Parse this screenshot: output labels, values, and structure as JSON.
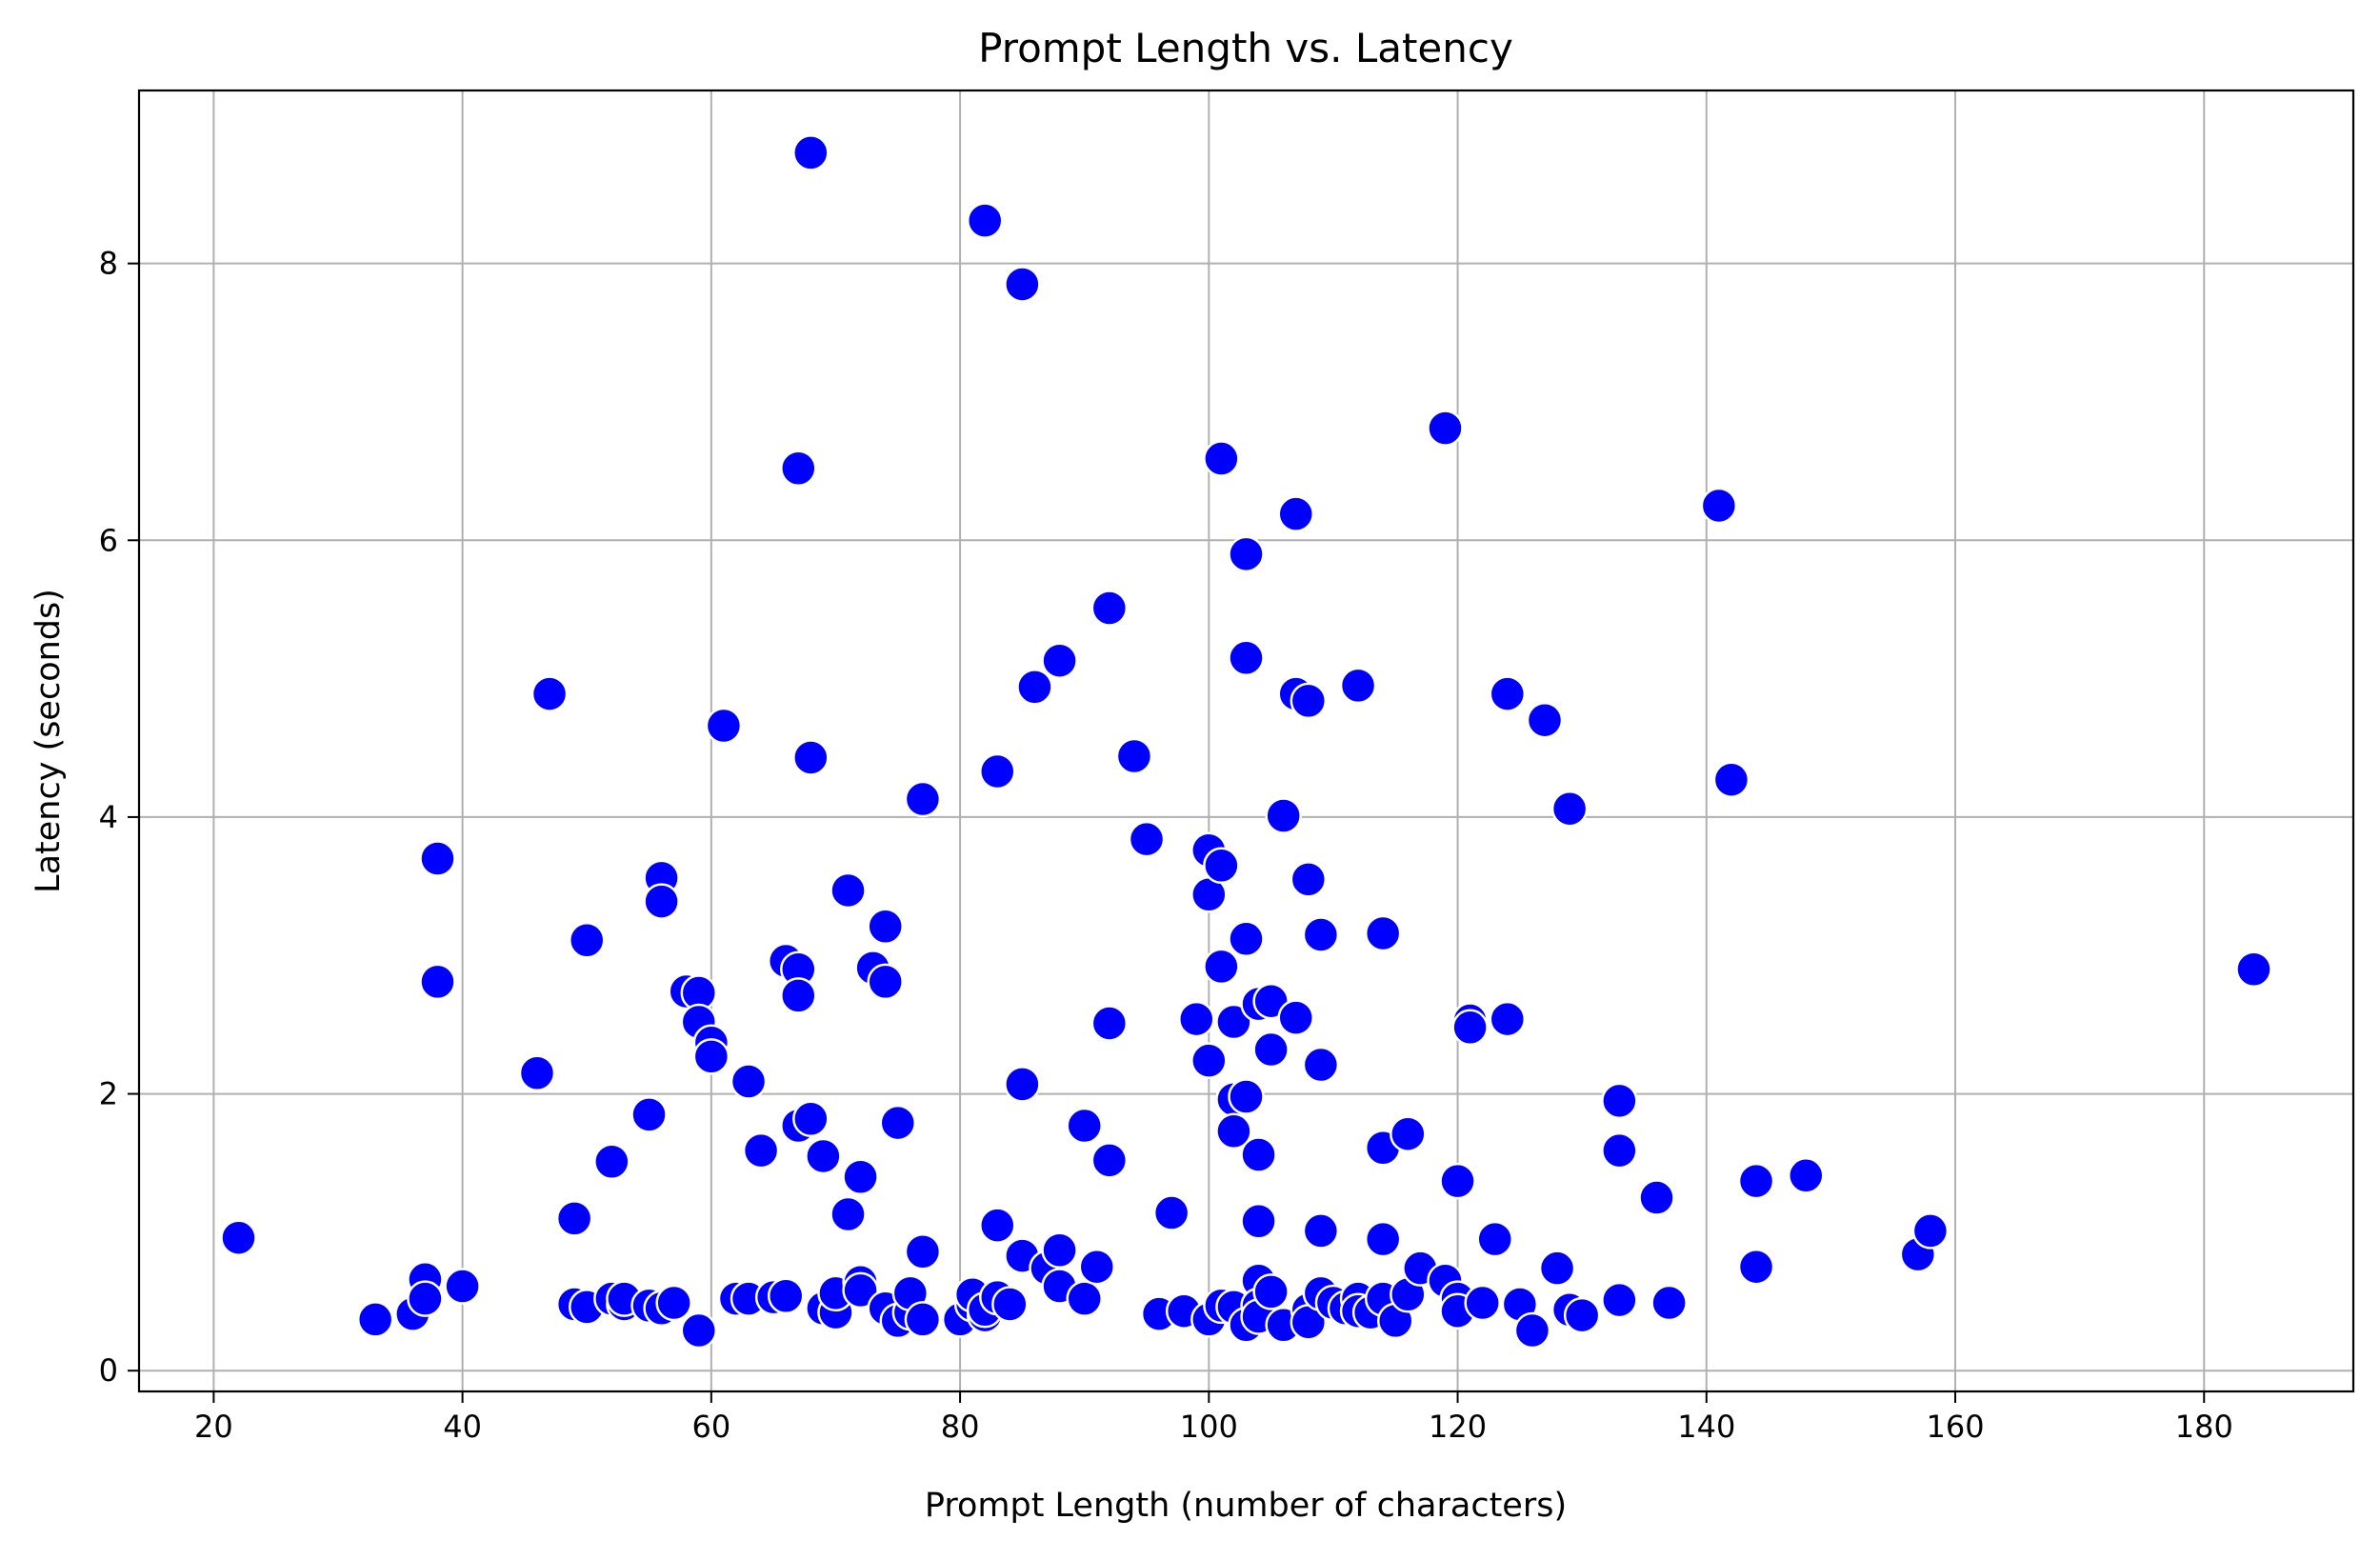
{
  "chart_data": {
    "type": "scatter",
    "title": "Prompt Length vs. Latency",
    "xlabel": "Prompt Length (number of characters)",
    "ylabel": "Latency (seconds)",
    "xlim": [
      14,
      192
    ],
    "ylim": [
      -0.15,
      9.25
    ],
    "xticks": [
      20,
      40,
      60,
      80,
      100,
      120,
      140,
      160,
      180
    ],
    "yticks": [
      0,
      2,
      4,
      6,
      8
    ],
    "grid": true,
    "marker_color": "#0000ff",
    "points": [
      [
        22,
        0.96
      ],
      [
        33,
        0.37
      ],
      [
        36,
        0.41
      ],
      [
        37,
        0.66
      ],
      [
        37,
        0.52
      ],
      [
        38,
        3.7
      ],
      [
        38,
        2.81
      ],
      [
        40,
        0.61
      ],
      [
        46,
        2.15
      ],
      [
        47,
        4.89
      ],
      [
        49,
        1.1
      ],
      [
        49,
        0.48
      ],
      [
        50,
        3.11
      ],
      [
        50,
        0.46
      ],
      [
        52,
        1.51
      ],
      [
        52,
        0.52
      ],
      [
        53,
        0.48
      ],
      [
        53,
        0.52
      ],
      [
        55,
        1.85
      ],
      [
        55,
        0.47
      ],
      [
        56,
        3.56
      ],
      [
        56,
        3.39
      ],
      [
        56,
        0.45
      ],
      [
        57,
        0.49
      ],
      [
        58,
        2.74
      ],
      [
        59,
        2.73
      ],
      [
        59,
        2.52
      ],
      [
        59,
        0.29
      ],
      [
        60,
        2.37
      ],
      [
        60,
        2.27
      ],
      [
        61,
        4.66
      ],
      [
        62,
        0.52
      ],
      [
        63,
        2.09
      ],
      [
        63,
        0.52
      ],
      [
        64,
        1.59
      ],
      [
        65,
        0.53
      ],
      [
        66,
        2.96
      ],
      [
        66,
        0.54
      ],
      [
        67,
        6.52
      ],
      [
        67,
        2.9
      ],
      [
        67,
        2.71
      ],
      [
        67,
        1.77
      ],
      [
        68,
        8.8
      ],
      [
        68,
        4.43
      ],
      [
        68,
        1.82
      ],
      [
        69,
        1.55
      ],
      [
        69,
        0.45
      ],
      [
        70,
        0.42
      ],
      [
        70,
        0.56
      ],
      [
        71,
        3.47
      ],
      [
        71,
        1.13
      ],
      [
        72,
        1.4
      ],
      [
        72,
        0.64
      ],
      [
        72,
        0.58
      ],
      [
        73,
        2.91
      ],
      [
        74,
        3.21
      ],
      [
        74,
        2.81
      ],
      [
        74,
        0.45
      ],
      [
        75,
        1.79
      ],
      [
        75,
        0.36
      ],
      [
        76,
        0.42
      ],
      [
        76,
        0.56
      ],
      [
        77,
        4.13
      ],
      [
        77,
        0.86
      ],
      [
        77,
        0.37
      ],
      [
        80,
        0.37
      ],
      [
        81,
        0.48
      ],
      [
        81,
        0.55
      ],
      [
        82,
        8.31
      ],
      [
        82,
        0.4
      ],
      [
        82,
        0.44
      ],
      [
        83,
        4.33
      ],
      [
        83,
        1.05
      ],
      [
        83,
        0.53
      ],
      [
        84,
        0.48
      ],
      [
        85,
        7.85
      ],
      [
        85,
        2.07
      ],
      [
        85,
        0.83
      ],
      [
        86,
        4.94
      ],
      [
        87,
        0.74
      ],
      [
        88,
        5.13
      ],
      [
        88,
        0.87
      ],
      [
        88,
        0.61
      ],
      [
        90,
        1.77
      ],
      [
        90,
        0.52
      ],
      [
        91,
        0.75
      ],
      [
        92,
        5.51
      ],
      [
        92,
        2.51
      ],
      [
        92,
        1.52
      ],
      [
        94,
        4.44
      ],
      [
        95,
        3.84
      ],
      [
        96,
        0.41
      ],
      [
        97,
        1.14
      ],
      [
        98,
        0.43
      ],
      [
        99,
        2.54
      ],
      [
        100,
        3.76
      ],
      [
        100,
        3.44
      ],
      [
        100,
        2.24
      ],
      [
        100,
        0.37
      ],
      [
        101,
        6.59
      ],
      [
        101,
        3.65
      ],
      [
        101,
        2.92
      ],
      [
        101,
        0.47
      ],
      [
        102,
        2.52
      ],
      [
        102,
        1.96
      ],
      [
        102,
        1.73
      ],
      [
        102,
        0.46
      ],
      [
        103,
        5.9
      ],
      [
        103,
        5.15
      ],
      [
        103,
        3.12
      ],
      [
        103,
        1.98
      ],
      [
        103,
        0.33
      ],
      [
        104,
        2.65
      ],
      [
        104,
        1.56
      ],
      [
        104,
        1.08
      ],
      [
        104,
        0.65
      ],
      [
        104,
        0.47
      ],
      [
        104,
        0.39
      ],
      [
        105,
        2.67
      ],
      [
        105,
        2.32
      ],
      [
        105,
        0.57
      ],
      [
        106,
        4.01
      ],
      [
        106,
        0.33
      ],
      [
        107,
        6.19
      ],
      [
        107,
        4.89
      ],
      [
        107,
        2.55
      ],
      [
        108,
        4.84
      ],
      [
        108,
        3.55
      ],
      [
        108,
        0.44
      ],
      [
        108,
        0.35
      ],
      [
        109,
        3.15
      ],
      [
        109,
        2.21
      ],
      [
        109,
        1.01
      ],
      [
        109,
        0.56
      ],
      [
        110,
        0.49
      ],
      [
        111,
        0.45
      ],
      [
        112,
        4.95
      ],
      [
        112,
        0.52
      ],
      [
        112,
        0.43
      ],
      [
        113,
        0.42
      ],
      [
        114,
        3.16
      ],
      [
        114,
        1.61
      ],
      [
        114,
        0.95
      ],
      [
        114,
        0.52
      ],
      [
        115,
        0.36
      ],
      [
        116,
        1.71
      ],
      [
        116,
        0.55
      ],
      [
        117,
        0.74
      ],
      [
        119,
        6.81
      ],
      [
        119,
        0.65
      ],
      [
        120,
        1.37
      ],
      [
        120,
        0.52
      ],
      [
        120,
        0.43
      ],
      [
        121,
        2.53
      ],
      [
        121,
        2.48
      ],
      [
        122,
        0.49
      ],
      [
        123,
        0.95
      ],
      [
        124,
        4.89
      ],
      [
        124,
        2.54
      ],
      [
        125,
        0.48
      ],
      [
        126,
        0.29
      ],
      [
        127,
        4.7
      ],
      [
        128,
        0.74
      ],
      [
        129,
        4.06
      ],
      [
        129,
        0.44
      ],
      [
        130,
        0.4
      ],
      [
        133,
        1.95
      ],
      [
        133,
        1.59
      ],
      [
        133,
        0.51
      ],
      [
        136,
        1.25
      ],
      [
        137,
        0.49
      ],
      [
        141,
        6.25
      ],
      [
        142,
        4.27
      ],
      [
        144,
        1.37
      ],
      [
        144,
        0.75
      ],
      [
        148,
        1.41
      ],
      [
        157,
        0.84
      ],
      [
        158,
        1.01
      ],
      [
        184,
        2.9
      ]
    ]
  }
}
